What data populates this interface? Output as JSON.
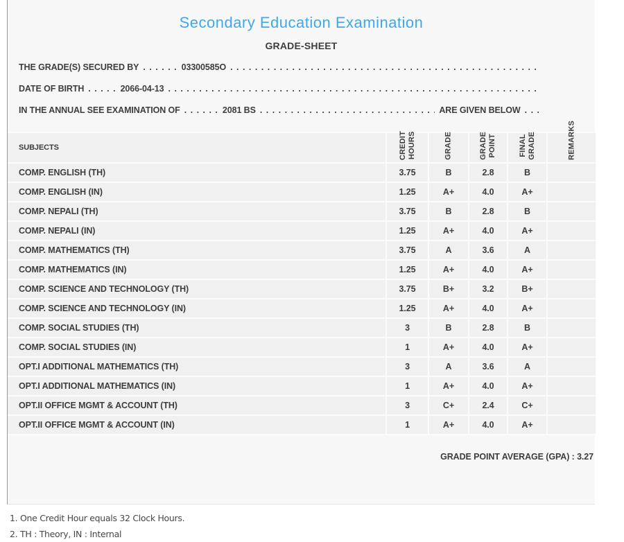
{
  "accent_color": "#3fa8ec",
  "header": {
    "title": "Secondary Education Examination",
    "subtitle": "GRADE-SHEET"
  },
  "dots": {
    "fill": ". . . . . . . . . . . . . . . . . . . . . . . . . . . . . . . . . . . . . . . . . . . . . . . . . . . . . . . . . . . . . . . . . . . . . . . . . . . . . . . . . . . . . . . . . . . ."
  },
  "info_lines": [
    {
      "label": "THE GRADE(S) SECURED BY",
      "pre_dots": ". . . . . .",
      "value": "03300585O",
      "suffix": "",
      "end_dots": ""
    },
    {
      "label": "DATE OF BIRTH",
      "pre_dots": ". . . . .",
      "value": "2066-04-13",
      "suffix": "",
      "end_dots": ""
    },
    {
      "label": "IN THE ANNUAL SEE EXAMINATION OF",
      "pre_dots": ". . . . . .",
      "value": "2081 BS",
      "suffix": "ARE GIVEN BELOW",
      "end_dots": ". . ."
    }
  ],
  "table": {
    "headers": {
      "subjects": "SUBJECTS",
      "credit_hours": "CREDIT\nHOURS",
      "grade": "GRADE",
      "grade_point": "GRADE\nPOINT",
      "final_grade": "FINAL\nGRADE",
      "remarks": "REMARKS"
    },
    "rows": [
      {
        "subject": "COMP. ENGLISH (TH)",
        "credit_hours": "3.75",
        "grade": "B",
        "grade_point": "2.8",
        "final_grade": "B",
        "remarks": ""
      },
      {
        "subject": "COMP. ENGLISH (IN)",
        "credit_hours": "1.25",
        "grade": "A+",
        "grade_point": "4.0",
        "final_grade": "A+",
        "remarks": ""
      },
      {
        "subject": "COMP. NEPALI (TH)",
        "credit_hours": "3.75",
        "grade": "B",
        "grade_point": "2.8",
        "final_grade": "B",
        "remarks": ""
      },
      {
        "subject": "COMP. NEPALI (IN)",
        "credit_hours": "1.25",
        "grade": "A+",
        "grade_point": "4.0",
        "final_grade": "A+",
        "remarks": ""
      },
      {
        "subject": "COMP. MATHEMATICS (TH)",
        "credit_hours": "3.75",
        "grade": "A",
        "grade_point": "3.6",
        "final_grade": "A",
        "remarks": ""
      },
      {
        "subject": "COMP. MATHEMATICS (IN)",
        "credit_hours": "1.25",
        "grade": "A+",
        "grade_point": "4.0",
        "final_grade": "A+",
        "remarks": ""
      },
      {
        "subject": "COMP. SCIENCE AND TECHNOLOGY (TH)",
        "credit_hours": "3.75",
        "grade": "B+",
        "grade_point": "3.2",
        "final_grade": "B+",
        "remarks": ""
      },
      {
        "subject": "COMP. SCIENCE AND TECHNOLOGY (IN)",
        "credit_hours": "1.25",
        "grade": "A+",
        "grade_point": "4.0",
        "final_grade": "A+",
        "remarks": ""
      },
      {
        "subject": "COMP. SOCIAL STUDIES (TH)",
        "credit_hours": "3",
        "grade": "B",
        "grade_point": "2.8",
        "final_grade": "B",
        "remarks": ""
      },
      {
        "subject": "COMP. SOCIAL STUDIES (IN)",
        "credit_hours": "1",
        "grade": "A+",
        "grade_point": "4.0",
        "final_grade": "A+",
        "remarks": ""
      },
      {
        "subject": "OPT.I ADDITIONAL MATHEMATICS (TH)",
        "credit_hours": "3",
        "grade": "A",
        "grade_point": "3.6",
        "final_grade": "A",
        "remarks": ""
      },
      {
        "subject": "OPT.I ADDITIONAL MATHEMATICS (IN)",
        "credit_hours": "1",
        "grade": "A+",
        "grade_point": "4.0",
        "final_grade": "A+",
        "remarks": ""
      },
      {
        "subject": "OPT.II OFFICE MGMT & ACCOUNT (TH)",
        "credit_hours": "3",
        "grade": "C+",
        "grade_point": "2.4",
        "final_grade": "C+",
        "remarks": ""
      },
      {
        "subject": "OPT.II OFFICE MGMT & ACCOUNT (IN)",
        "credit_hours": "1",
        "grade": "A+",
        "grade_point": "4.0",
        "final_grade": "A+",
        "remarks": ""
      }
    ]
  },
  "summary": {
    "gpa_line": "GRADE POINT AVERAGE (GPA) : 3.27"
  },
  "footnotes": [
    "1. One Credit Hour equals 32 Clock Hours.",
    "2. TH : Theory, IN : Internal"
  ]
}
